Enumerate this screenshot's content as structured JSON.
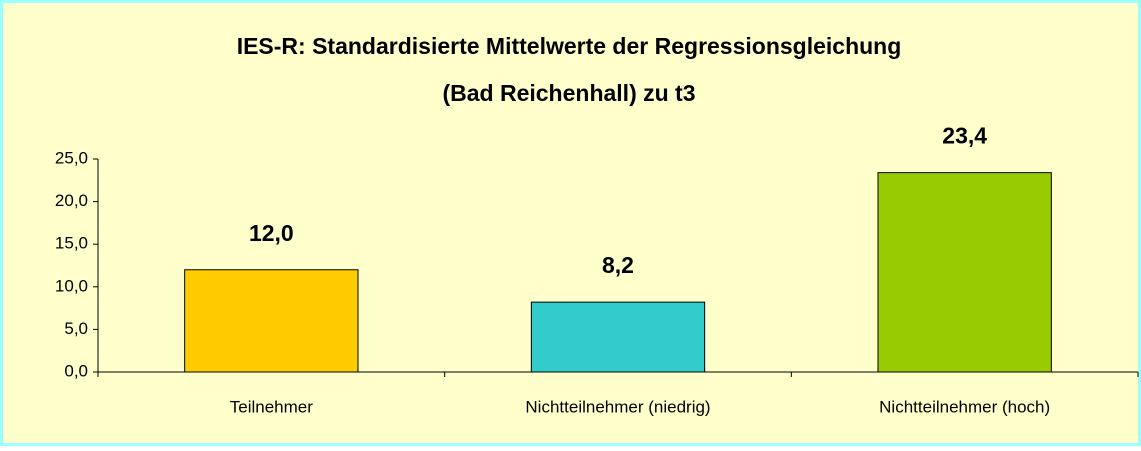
{
  "chart_data": {
    "type": "bar",
    "title": [
      "IES-R: Standardisierte Mittelwerte der Regressionsgleichung",
      "(Bad Reichenhall) zu t3"
    ],
    "categories": [
      "Teilnehmer",
      "Nichtteilnehmer (niedrig)",
      "Nichtteilnehmer (hoch)"
    ],
    "values": [
      12.0,
      8.2,
      23.4
    ],
    "value_labels": [
      "12,0",
      "8,2",
      "23,4"
    ],
    "colors": [
      "#ffcc00",
      "#33cccc",
      "#99cc00"
    ],
    "ylim": [
      0,
      25
    ],
    "yticks": [
      {
        "value": 0,
        "label": "0,0"
      },
      {
        "value": 5,
        "label": "5,0"
      },
      {
        "value": 10,
        "label": "10,0"
      },
      {
        "value": 15,
        "label": "15,0"
      },
      {
        "value": 20,
        "label": "20,0"
      },
      {
        "value": 25,
        "label": "25,0"
      }
    ],
    "grid": false
  }
}
